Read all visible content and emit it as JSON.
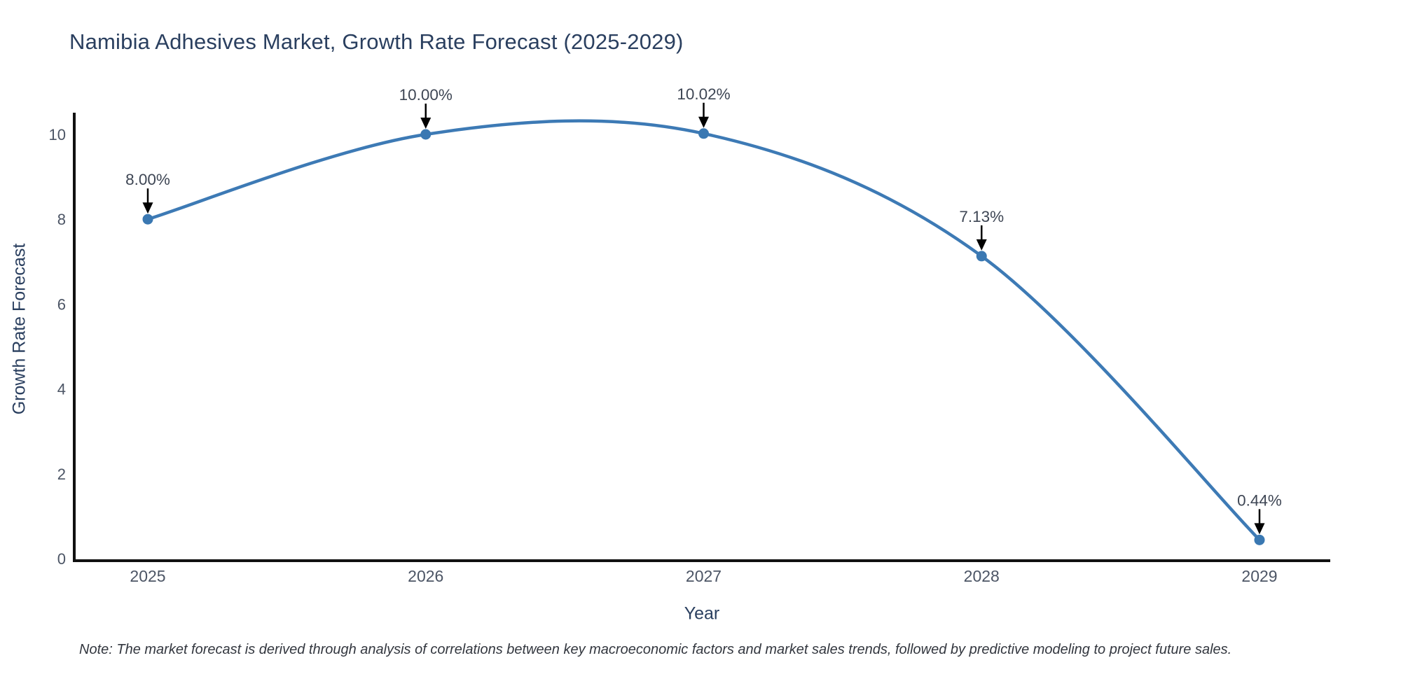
{
  "chart": {
    "title": "Namibia Adhesives Market, Growth Rate Forecast (2025-2029)",
    "xlabel": "Year",
    "ylabel": "Growth Rate Forecast",
    "note": "Note: The market forecast is derived through analysis of correlations between key macroeconomic factors and market sales trends, followed by predictive modeling to project future sales."
  },
  "chart_data": {
    "type": "line",
    "line_shape": "spline",
    "title": "Namibia Adhesives Market, Growth Rate Forecast (2025-2029)",
    "xlabel": "Year",
    "ylabel": "Growth Rate Forecast",
    "categories": [
      "2025",
      "2026",
      "2027",
      "2028",
      "2029"
    ],
    "values": [
      8.0,
      10.0,
      10.02,
      7.13,
      0.44
    ],
    "point_labels": [
      "8.00%",
      "10.00%",
      "10.02%",
      "7.13%",
      "0.44%"
    ],
    "ylim": [
      0,
      10.6
    ],
    "yticks": [
      0,
      2,
      4,
      6,
      8,
      10
    ],
    "grid": false,
    "legend": "none",
    "colors": {
      "line": "#3d7ab5",
      "marker": "#3a78b2",
      "axis": "#111111",
      "tick_text": "#4c5565",
      "annotation_text": "#3e4654",
      "arrow": "#000000",
      "title_text": "#2a3f5f"
    }
  }
}
